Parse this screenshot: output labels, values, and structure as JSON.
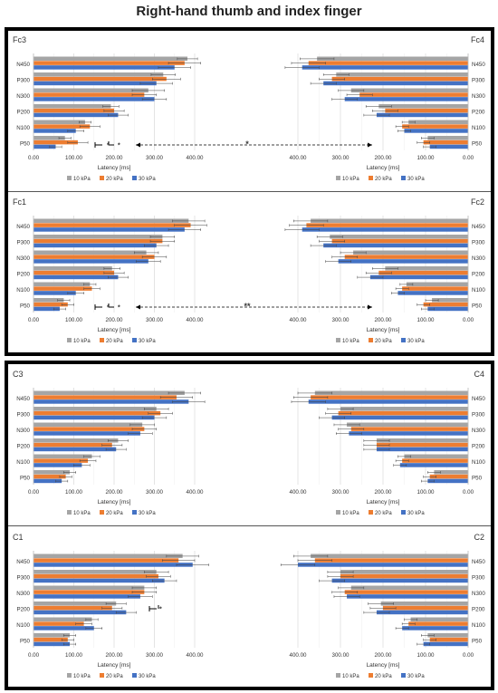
{
  "title": "Right-hand thumb and index finger",
  "colors": {
    "10 kPa": "#a5a5a5",
    "20 kPa": "#ed7d31",
    "30 kPa": "#4472c4"
  },
  "chart_data": [
    {
      "type": "bar",
      "name": "Fc3",
      "categories": [
        "N450",
        "P300",
        "N300",
        "P200",
        "N100",
        "P50"
      ],
      "series": [
        {
          "name": "10 kPa",
          "values": [
            382,
            322,
            285,
            192,
            128,
            78
          ],
          "errors": [
            25,
            30,
            40,
            20,
            15,
            15
          ]
        },
        {
          "name": "20 kPa",
          "values": [
            375,
            330,
            275,
            200,
            140,
            110
          ],
          "errors": [
            40,
            35,
            30,
            25,
            25,
            25
          ]
        },
        {
          "name": "30 kPa",
          "values": [
            350,
            305,
            300,
            210,
            105,
            55
          ],
          "errors": [
            40,
            40,
            30,
            25,
            20,
            15
          ]
        }
      ],
      "xlim": [
        0,
        400
      ],
      "xticks": [
        "0.00",
        "100.00",
        "200.00",
        "300.00",
        "400.00"
      ],
      "xlabel": "Latency [ms]",
      "legend": [
        "10 kPa",
        "20 kPa",
        "30 kPa"
      ],
      "annotations": [
        "*",
        "*"
      ]
    },
    {
      "type": "bar",
      "name": "Fc4",
      "categories": [
        "N450",
        "P300",
        "N300",
        "P200",
        "N100",
        "P50"
      ],
      "series": [
        {
          "name": "10 kPa",
          "values": [
            355,
            310,
            275,
            210,
            140,
            95
          ],
          "errors": [
            40,
            30,
            30,
            30,
            15,
            15
          ]
        },
        {
          "name": "20 kPa",
          "values": [
            375,
            320,
            255,
            195,
            155,
            105
          ],
          "errors": [
            40,
            30,
            30,
            30,
            15,
            15
          ]
        },
        {
          "name": "30 kPa",
          "values": [
            390,
            340,
            290,
            215,
            150,
            90
          ],
          "errors": [
            40,
            30,
            30,
            30,
            15,
            15
          ]
        }
      ],
      "xlim": [
        400,
        0
      ],
      "xticks": [
        "400.00",
        "300.00",
        "200.00",
        "100.00",
        "0.00"
      ],
      "xlabel": "Latency [ms]",
      "legend": [
        "10 kPa",
        "20 kPa",
        "30 kPa"
      ],
      "annotations": [
        "*"
      ]
    },
    {
      "type": "bar",
      "name": "Fc1",
      "categories": [
        "N450",
        "P300",
        "N300",
        "P200",
        "N100",
        "P50"
      ],
      "series": [
        {
          "name": "10 kPa",
          "values": [
            385,
            320,
            280,
            195,
            140,
            75
          ],
          "errors": [
            40,
            30,
            30,
            20,
            15,
            15
          ]
        },
        {
          "name": "20 kPa",
          "values": [
            390,
            320,
            300,
            200,
            145,
            85
          ],
          "errors": [
            40,
            30,
            30,
            25,
            20,
            15
          ]
        },
        {
          "name": "30 kPa",
          "values": [
            375,
            305,
            285,
            210,
            105,
            65
          ],
          "errors": [
            40,
            30,
            30,
            25,
            20,
            15
          ]
        }
      ],
      "xlim": [
        0,
        400
      ],
      "xticks": [
        "0.00",
        "100.00",
        "200.00",
        "300.00",
        "400.00"
      ],
      "xlabel": "Latency [ms]",
      "legend": [
        "10 kPa",
        "20 kPa",
        "30 kPa"
      ],
      "annotations": [
        "*"
      ]
    },
    {
      "type": "bar",
      "name": "Fc2",
      "categories": [
        "N450",
        "P300",
        "N300",
        "P200",
        "N100",
        "P50"
      ],
      "series": [
        {
          "name": "10 kPa",
          "values": [
            370,
            325,
            270,
            195,
            145,
            85
          ],
          "errors": [
            40,
            30,
            30,
            30,
            15,
            15
          ]
        },
        {
          "name": "20 kPa",
          "values": [
            380,
            320,
            290,
            210,
            155,
            105
          ],
          "errors": [
            40,
            30,
            30,
            30,
            15,
            15
          ]
        },
        {
          "name": "30 kPa",
          "values": [
            390,
            340,
            305,
            230,
            165,
            95
          ],
          "errors": [
            40,
            30,
            30,
            30,
            15,
            15
          ]
        }
      ],
      "xlim": [
        400,
        0
      ],
      "xticks": [
        "400.00",
        "300.00",
        "200.00",
        "100.00",
        "0.00"
      ],
      "xlabel": "Latency [ms]",
      "legend": [
        "10 kPa",
        "20 kPa",
        "30 kPa"
      ],
      "annotations": [
        "**"
      ]
    },
    {
      "type": "bar",
      "name": "C3",
      "categories": [
        "N450",
        "P300",
        "N300",
        "P200",
        "N100",
        "P50"
      ],
      "series": [
        {
          "name": "10 kPa",
          "values": [
            375,
            305,
            270,
            210,
            145,
            90
          ],
          "errors": [
            40,
            30,
            30,
            25,
            20,
            15
          ]
        },
        {
          "name": "20 kPa",
          "values": [
            355,
            315,
            275,
            195,
            135,
            80
          ],
          "errors": [
            40,
            30,
            30,
            25,
            20,
            15
          ]
        },
        {
          "name": "30 kPa",
          "values": [
            385,
            300,
            265,
            205,
            120,
            70
          ],
          "errors": [
            40,
            30,
            30,
            25,
            20,
            15
          ]
        }
      ],
      "xlim": [
        0,
        400
      ],
      "xticks": [
        "0.00",
        "100.00",
        "200.00",
        "300.00",
        "400.00"
      ],
      "xlabel": "Latency [ms]",
      "legend": [
        "10 kPa",
        "20 kPa",
        "30 kPa"
      ]
    },
    {
      "type": "bar",
      "name": "C4",
      "categories": [
        "N450",
        "P300",
        "N300",
        "P200",
        "N100",
        "P50"
      ],
      "series": [
        {
          "name": "10 kPa",
          "values": [
            360,
            300,
            285,
            215,
            150,
            80
          ],
          "errors": [
            40,
            30,
            30,
            30,
            15,
            15
          ]
        },
        {
          "name": "20 kPa",
          "values": [
            370,
            305,
            275,
            215,
            155,
            90
          ],
          "errors": [
            40,
            30,
            30,
            30,
            15,
            15
          ]
        },
        {
          "name": "30 kPa",
          "values": [
            375,
            320,
            280,
            215,
            160,
            95
          ],
          "errors": [
            40,
            30,
            30,
            30,
            15,
            15
          ]
        }
      ],
      "xlim": [
        400,
        0
      ],
      "xticks": [
        "400.00",
        "300.00",
        "200.00",
        "100.00",
        "0.00"
      ],
      "xlabel": "Latency [ms]",
      "legend": [
        "10 kPa",
        "20 kPa",
        "30 kPa"
      ]
    },
    {
      "type": "bar",
      "name": "C1",
      "categories": [
        "N450",
        "P300",
        "N300",
        "P200",
        "N100",
        "P50"
      ],
      "series": [
        {
          "name": "10 kPa",
          "values": [
            370,
            305,
            275,
            205,
            145,
            90
          ],
          "errors": [
            40,
            30,
            30,
            25,
            15,
            15
          ]
        },
        {
          "name": "20 kPa",
          "values": [
            360,
            310,
            275,
            195,
            125,
            85
          ],
          "errors": [
            40,
            30,
            30,
            25,
            20,
            15
          ]
        },
        {
          "name": "30 kPa",
          "values": [
            395,
            325,
            265,
            230,
            150,
            90
          ],
          "errors": [
            40,
            30,
            30,
            25,
            20,
            15
          ]
        }
      ],
      "xlim": [
        0,
        400
      ],
      "xticks": [
        "0.00",
        "100.00",
        "200.00",
        "300.00",
        "400.00"
      ],
      "xlabel": "Latency [ms]",
      "legend": [
        "10 kPa",
        "20 kPa",
        "30 kPa"
      ],
      "annotations": [
        "*"
      ]
    },
    {
      "type": "bar",
      "name": "C2",
      "categories": [
        "N450",
        "P300",
        "N300",
        "P200",
        "N100",
        "P50"
      ],
      "series": [
        {
          "name": "10 kPa",
          "values": [
            370,
            300,
            275,
            205,
            135,
            95
          ],
          "errors": [
            40,
            30,
            30,
            30,
            15,
            15
          ]
        },
        {
          "name": "20 kPa",
          "values": [
            360,
            300,
            290,
            200,
            140,
            90
          ],
          "errors": [
            40,
            30,
            30,
            30,
            15,
            15
          ]
        },
        {
          "name": "30 kPa",
          "values": [
            400,
            320,
            285,
            215,
            155,
            105
          ],
          "errors": [
            40,
            30,
            30,
            30,
            15,
            15
          ]
        }
      ],
      "xlim": [
        400,
        0
      ],
      "xticks": [
        "400.00",
        "300.00",
        "200.00",
        "100.00",
        "0.00"
      ],
      "xlabel": "Latency [ms]",
      "legend": [
        "10 kPa",
        "20 kPa",
        "30 kPa"
      ]
    }
  ]
}
